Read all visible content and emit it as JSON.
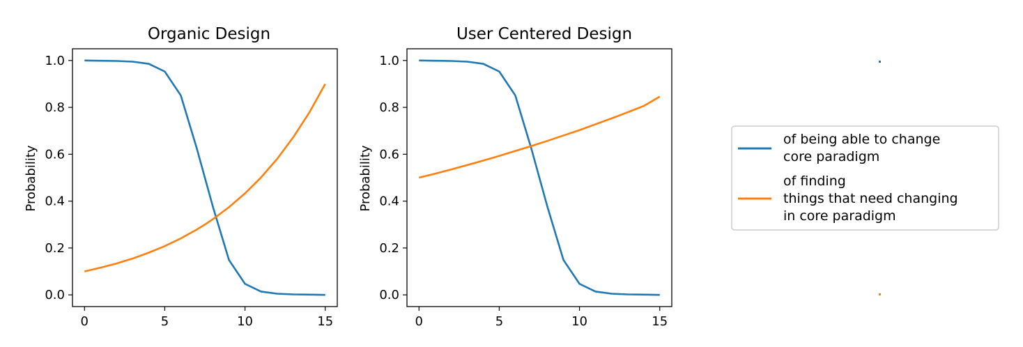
{
  "chart_data": [
    {
      "type": "line",
      "title": "Organic Design",
      "xlabel": "",
      "ylabel": "Probability",
      "xlim": [
        -0.75,
        15.75
      ],
      "ylim": [
        -0.05,
        1.05
      ],
      "xticks": [
        0,
        5,
        10,
        15
      ],
      "yticks": [
        0.0,
        0.2,
        0.4,
        0.6,
        0.8,
        1.0
      ],
      "xtick_labels": [
        "0",
        "5",
        "10",
        "15"
      ],
      "ytick_labels": [
        "0.0",
        "0.2",
        "0.4",
        "0.6",
        "0.8",
        "1.0"
      ],
      "x": [
        0,
        1,
        2,
        3,
        4,
        5,
        6,
        7,
        7.5,
        8,
        9,
        10,
        11,
        12,
        13,
        14,
        15
      ],
      "series": [
        {
          "color": "#1f77b4",
          "values": [
            1.0,
            0.999,
            0.998,
            0.995,
            0.986,
            0.953,
            0.851,
            0.624,
            0.5,
            0.376,
            0.149,
            0.047,
            0.014,
            0.005,
            0.002,
            0.001,
            0.0
          ]
        },
        {
          "color": "#ff7f0e",
          "values": [
            0.1,
            0.116,
            0.134,
            0.155,
            0.18,
            0.208,
            0.241,
            0.279,
            0.3,
            0.323,
            0.374,
            0.433,
            0.501,
            0.58,
            0.672,
            0.777,
            0.9
          ]
        }
      ]
    },
    {
      "type": "line",
      "title": "User Centered Design",
      "xlabel": "",
      "ylabel": "Probability",
      "xlim": [
        -0.75,
        15.75
      ],
      "ylim": [
        -0.05,
        1.05
      ],
      "xticks": [
        0,
        5,
        10,
        15
      ],
      "yticks": [
        0.0,
        0.2,
        0.4,
        0.6,
        0.8,
        1.0
      ],
      "xtick_labels": [
        "0",
        "5",
        "10",
        "15"
      ],
      "ytick_labels": [
        "0.0",
        "0.2",
        "0.4",
        "0.6",
        "0.8",
        "1.0"
      ],
      "x": [
        0,
        1,
        2,
        3,
        4,
        5,
        6,
        7,
        7.5,
        8,
        9,
        10,
        11,
        12,
        13,
        14,
        15
      ],
      "series": [
        {
          "color": "#1f77b4",
          "values": [
            1.0,
            0.999,
            0.998,
            0.995,
            0.986,
            0.953,
            0.851,
            0.624,
            0.5,
            0.376,
            0.149,
            0.047,
            0.014,
            0.005,
            0.002,
            0.001,
            0.0
          ]
        },
        {
          "color": "#ff7f0e",
          "values": [
            0.5,
            0.517,
            0.535,
            0.554,
            0.573,
            0.593,
            0.614,
            0.635,
            0.646,
            0.657,
            0.68,
            0.703,
            0.728,
            0.753,
            0.779,
            0.806,
            0.846
          ]
        }
      ]
    }
  ],
  "legend": {
    "placement": "right",
    "entries": [
      {
        "color": "#1f77b4",
        "lines": [
          "of being able to change",
          "core paradigm"
        ]
      },
      {
        "color": "#ff7f0e",
        "lines": [
          "of finding",
          "things that need changing",
          "in core paradigm"
        ]
      }
    ]
  }
}
